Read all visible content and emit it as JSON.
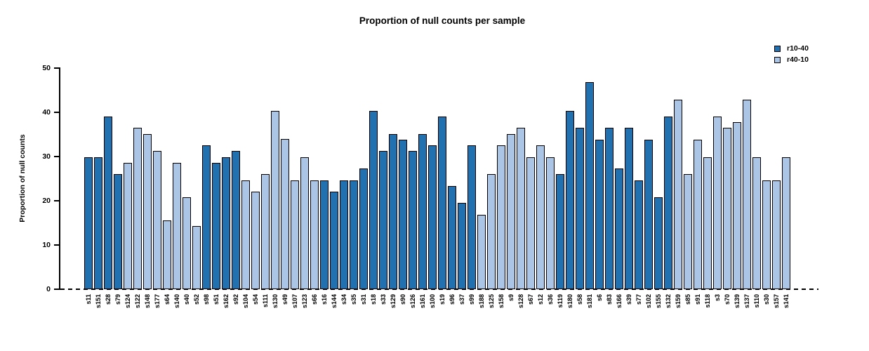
{
  "chart_data": {
    "type": "bar",
    "title": "Proportion of null counts per sample",
    "ylabel": "Proportion of null counts",
    "xlabel": "",
    "ylim": [
      0,
      50
    ],
    "yticks": [
      0,
      10,
      20,
      30,
      40,
      50
    ],
    "grid": false,
    "legend_position": "top-right",
    "zero_line_style": "dashed",
    "legend": [
      {
        "label": "r10-40",
        "color": "#2171B0"
      },
      {
        "label": "r40-10",
        "color": "#ABC5E6"
      }
    ],
    "bars": [
      {
        "sample": "s11",
        "value": 29.8,
        "series": "r10-40"
      },
      {
        "sample": "s151",
        "value": 29.8,
        "series": "r10-40"
      },
      {
        "sample": "s28",
        "value": 39.0,
        "series": "r10-40"
      },
      {
        "sample": "s79",
        "value": 26.0,
        "series": "r10-40"
      },
      {
        "sample": "s124",
        "value": 28.5,
        "series": "r40-10"
      },
      {
        "sample": "s122",
        "value": 36.4,
        "series": "r40-10"
      },
      {
        "sample": "s148",
        "value": 35.0,
        "series": "r40-10"
      },
      {
        "sample": "s177",
        "value": 31.2,
        "series": "r40-10"
      },
      {
        "sample": "s64",
        "value": 15.6,
        "series": "r40-10"
      },
      {
        "sample": "s140",
        "value": 28.5,
        "series": "r40-10"
      },
      {
        "sample": "s40",
        "value": 20.8,
        "series": "r40-10"
      },
      {
        "sample": "s52",
        "value": 14.3,
        "series": "r40-10"
      },
      {
        "sample": "s98",
        "value": 32.5,
        "series": "r10-40"
      },
      {
        "sample": "s51",
        "value": 28.5,
        "series": "r10-40"
      },
      {
        "sample": "s162",
        "value": 29.8,
        "series": "r10-40"
      },
      {
        "sample": "s92",
        "value": 31.2,
        "series": "r10-40"
      },
      {
        "sample": "s104",
        "value": 24.6,
        "series": "r40-10"
      },
      {
        "sample": "s54",
        "value": 22.1,
        "series": "r40-10"
      },
      {
        "sample": "s111",
        "value": 26.0,
        "series": "r40-10"
      },
      {
        "sample": "s130",
        "value": 40.2,
        "series": "r40-10"
      },
      {
        "sample": "s49",
        "value": 33.9,
        "series": "r40-10"
      },
      {
        "sample": "s107",
        "value": 24.6,
        "series": "r40-10"
      },
      {
        "sample": "s123",
        "value": 29.8,
        "series": "r40-10"
      },
      {
        "sample": "s66",
        "value": 24.6,
        "series": "r40-10"
      },
      {
        "sample": "s16",
        "value": 24.6,
        "series": "r10-40"
      },
      {
        "sample": "s144",
        "value": 22.1,
        "series": "r10-40"
      },
      {
        "sample": "s34",
        "value": 24.6,
        "series": "r10-40"
      },
      {
        "sample": "s35",
        "value": 24.6,
        "series": "r10-40"
      },
      {
        "sample": "s31",
        "value": 27.3,
        "series": "r10-40"
      },
      {
        "sample": "s18",
        "value": 40.2,
        "series": "r10-40"
      },
      {
        "sample": "s33",
        "value": 31.2,
        "series": "r10-40"
      },
      {
        "sample": "s129",
        "value": 35.0,
        "series": "r10-40"
      },
      {
        "sample": "s90",
        "value": 33.8,
        "series": "r10-40"
      },
      {
        "sample": "s126",
        "value": 31.2,
        "series": "r10-40"
      },
      {
        "sample": "s161",
        "value": 35.0,
        "series": "r10-40"
      },
      {
        "sample": "s100",
        "value": 32.5,
        "series": "r10-40"
      },
      {
        "sample": "s19",
        "value": 39.0,
        "series": "r10-40"
      },
      {
        "sample": "s96",
        "value": 23.3,
        "series": "r10-40"
      },
      {
        "sample": "s37",
        "value": 19.5,
        "series": "r10-40"
      },
      {
        "sample": "s99",
        "value": 32.5,
        "series": "r10-40"
      },
      {
        "sample": "s188",
        "value": 16.8,
        "series": "r40-10"
      },
      {
        "sample": "s125",
        "value": 26.0,
        "series": "r40-10"
      },
      {
        "sample": "s158",
        "value": 32.5,
        "series": "r40-10"
      },
      {
        "sample": "s9",
        "value": 35.0,
        "series": "r40-10"
      },
      {
        "sample": "s128",
        "value": 36.5,
        "series": "r40-10"
      },
      {
        "sample": "s67",
        "value": 29.8,
        "series": "r40-10"
      },
      {
        "sample": "s12",
        "value": 32.5,
        "series": "r40-10"
      },
      {
        "sample": "s36",
        "value": 29.8,
        "series": "r40-10"
      },
      {
        "sample": "s119",
        "value": 26.0,
        "series": "r10-40"
      },
      {
        "sample": "s180",
        "value": 40.2,
        "series": "r10-40"
      },
      {
        "sample": "s58",
        "value": 36.5,
        "series": "r10-40"
      },
      {
        "sample": "s181",
        "value": 46.8,
        "series": "r10-40"
      },
      {
        "sample": "s6",
        "value": 33.8,
        "series": "r10-40"
      },
      {
        "sample": "s83",
        "value": 36.5,
        "series": "r10-40"
      },
      {
        "sample": "s166",
        "value": 27.3,
        "series": "r10-40"
      },
      {
        "sample": "s39",
        "value": 36.5,
        "series": "r10-40"
      },
      {
        "sample": "s77",
        "value": 24.6,
        "series": "r10-40"
      },
      {
        "sample": "s102",
        "value": 33.8,
        "series": "r10-40"
      },
      {
        "sample": "s155",
        "value": 20.8,
        "series": "r10-40"
      },
      {
        "sample": "s132",
        "value": 39.0,
        "series": "r10-40"
      },
      {
        "sample": "s159",
        "value": 42.8,
        "series": "r40-10"
      },
      {
        "sample": "s85",
        "value": 26.0,
        "series": "r40-10"
      },
      {
        "sample": "s91",
        "value": 33.8,
        "series": "r40-10"
      },
      {
        "sample": "s118",
        "value": 29.8,
        "series": "r40-10"
      },
      {
        "sample": "s3",
        "value": 39.0,
        "series": "r40-10"
      },
      {
        "sample": "s70",
        "value": 36.5,
        "series": "r40-10"
      },
      {
        "sample": "s139",
        "value": 37.7,
        "series": "r40-10"
      },
      {
        "sample": "s137",
        "value": 42.8,
        "series": "r40-10"
      },
      {
        "sample": "s110",
        "value": 29.8,
        "series": "r40-10"
      },
      {
        "sample": "s30",
        "value": 24.6,
        "series": "r40-10"
      },
      {
        "sample": "s157",
        "value": 24.6,
        "series": "r40-10"
      },
      {
        "sample": "s141",
        "value": 29.8,
        "series": "r40-10"
      }
    ]
  }
}
